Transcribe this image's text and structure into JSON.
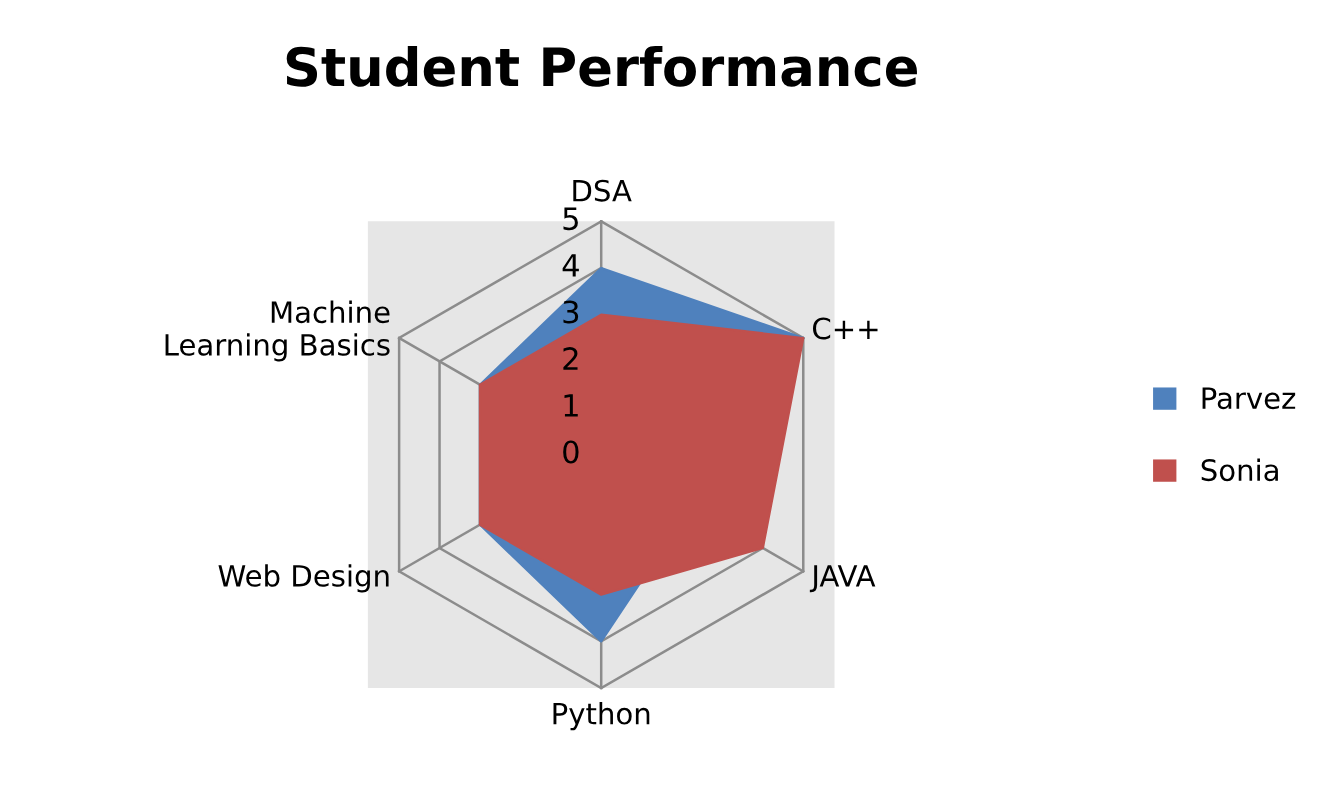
{
  "chart_data": {
    "type": "radar",
    "title": "Student Performance",
    "categories": [
      "DSA",
      "C++",
      "JAVA",
      "Python",
      "Web Design",
      "Machine\nLearning Basics"
    ],
    "series": [
      {
        "name": "Parvez",
        "color": "#4f81bd",
        "values": [
          4,
          5,
          null,
          4,
          3,
          3
        ]
      },
      {
        "name": "Sonia",
        "color": "#c0504d",
        "values": [
          3,
          5,
          4,
          3,
          3,
          3
        ]
      }
    ],
    "ylim": [
      0,
      5
    ],
    "yticks": [
      0,
      1,
      2,
      3,
      4,
      5
    ],
    "grid": true,
    "legend": "right"
  }
}
